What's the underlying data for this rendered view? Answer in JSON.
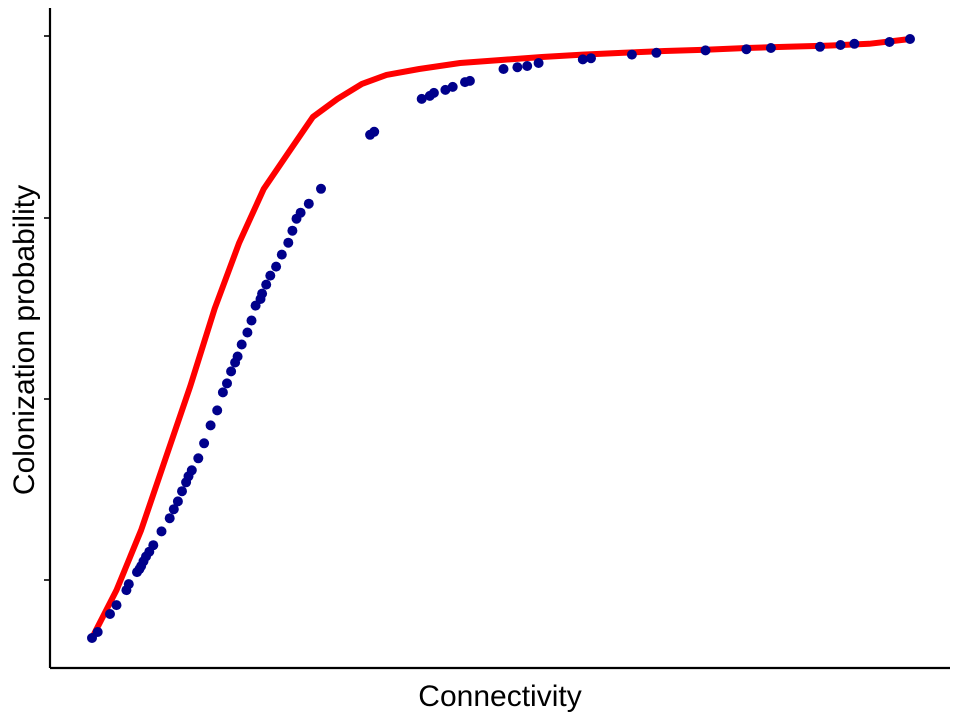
{
  "chart_data": {
    "type": "scatter",
    "title": "",
    "xlabel": "Connectivity",
    "ylabel": "Colonization probability",
    "x_ticks_labels": false,
    "y_ticks_labels": false,
    "xlim": [
      0,
      1
    ],
    "ylim": [
      0,
      1
    ],
    "grid": false,
    "line_color": "#ff0000",
    "point_color": "#00008b",
    "series": [
      {
        "kind": "line",
        "x": [
          0.0,
          0.03,
          0.06,
          0.09,
          0.12,
          0.15,
          0.18,
          0.21,
          0.24,
          0.27,
          0.3,
          0.33,
          0.36,
          0.4,
          0.45,
          0.5,
          0.55,
          0.6,
          0.65,
          0.7,
          0.75,
          0.8,
          0.85,
          0.9,
          0.95,
          1.0
        ],
        "y": [
          0.0,
          0.08,
          0.18,
          0.3,
          0.42,
          0.55,
          0.66,
          0.75,
          0.81,
          0.87,
          0.9,
          0.925,
          0.94,
          0.95,
          0.96,
          0.965,
          0.97,
          0.974,
          0.977,
          0.98,
          0.982,
          0.985,
          0.987,
          0.989,
          0.992,
          1.0
        ]
      },
      {
        "kind": "points",
        "x": [
          0.0,
          0.007,
          0.022,
          0.03,
          0.042,
          0.045,
          0.055,
          0.058,
          0.06,
          0.063,
          0.066,
          0.07,
          0.075,
          0.085,
          0.095,
          0.1,
          0.105,
          0.11,
          0.115,
          0.118,
          0.122,
          0.13,
          0.137,
          0.145,
          0.153,
          0.16,
          0.165,
          0.17,
          0.175,
          0.178,
          0.183,
          0.19,
          0.195,
          0.2,
          0.206,
          0.208,
          0.213,
          0.218,
          0.225,
          0.232,
          0.24,
          0.245,
          0.25,
          0.255,
          0.265,
          0.28,
          0.34,
          0.345,
          0.403,
          0.413,
          0.418,
          0.432,
          0.441,
          0.456,
          0.462,
          0.503,
          0.52,
          0.532,
          0.546,
          0.6,
          0.61,
          0.66,
          0.69,
          0.75,
          0.8,
          0.83,
          0.89,
          0.915,
          0.932,
          0.975,
          1.0
        ],
        "y": [
          0.0,
          0.01,
          0.04,
          0.055,
          0.08,
          0.09,
          0.11,
          0.115,
          0.12,
          0.128,
          0.136,
          0.144,
          0.155,
          0.178,
          0.2,
          0.215,
          0.228,
          0.245,
          0.26,
          0.27,
          0.28,
          0.3,
          0.325,
          0.355,
          0.38,
          0.41,
          0.425,
          0.445,
          0.46,
          0.47,
          0.49,
          0.51,
          0.53,
          0.555,
          0.566,
          0.575,
          0.59,
          0.605,
          0.62,
          0.64,
          0.66,
          0.68,
          0.7,
          0.71,
          0.725,
          0.75,
          0.84,
          0.845,
          0.9,
          0.905,
          0.91,
          0.915,
          0.92,
          0.928,
          0.93,
          0.95,
          0.953,
          0.955,
          0.96,
          0.966,
          0.968,
          0.974,
          0.977,
          0.981,
          0.983,
          0.985,
          0.987,
          0.99,
          0.992,
          0.995,
          1.0
        ]
      }
    ]
  }
}
